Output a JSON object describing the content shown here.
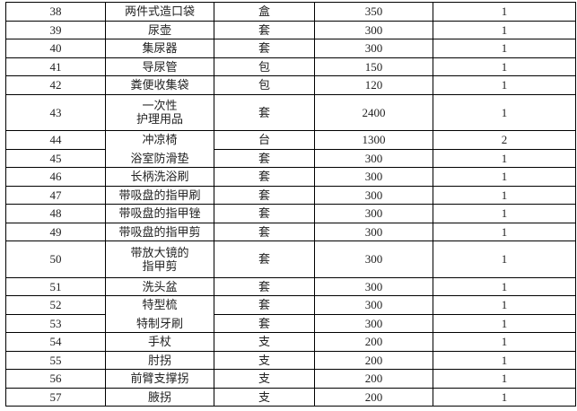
{
  "rows": [
    {
      "no": "38",
      "name": "两件式造口袋",
      "unit": "盒",
      "price": "350",
      "qty": "1"
    },
    {
      "no": "39",
      "name": "尿壶",
      "unit": "套",
      "price": "300",
      "qty": "1"
    },
    {
      "no": "40",
      "name": "集尿器",
      "unit": "套",
      "price": "300",
      "qty": "1"
    },
    {
      "no": "41",
      "name": "导尿管",
      "unit": "包",
      "price": "150",
      "qty": "1"
    },
    {
      "no": "42",
      "name": "粪便收集袋",
      "unit": "包",
      "price": "120",
      "qty": "1"
    },
    {
      "no": "43",
      "name": "一次性\n护理用品",
      "unit": "套",
      "price": "2400",
      "qty": "1"
    },
    {
      "no": "44",
      "name": "冲凉椅",
      "unit": "台",
      "price": "1300",
      "qty": "2"
    },
    {
      "no": "45",
      "name": "浴室防滑垫",
      "unit": "套",
      "price": "300",
      "qty": "1"
    },
    {
      "no": "46",
      "name": "长柄洗浴刷",
      "unit": "套",
      "price": "300",
      "qty": "1"
    },
    {
      "no": "47",
      "name": "带吸盘的指甲刷",
      "unit": "套",
      "price": "300",
      "qty": "1"
    },
    {
      "no": "48",
      "name": "带吸盘的指甲锉",
      "unit": "套",
      "price": "300",
      "qty": "1"
    },
    {
      "no": "49",
      "name": "带吸盘的指甲剪",
      "unit": "套",
      "price": "300",
      "qty": "1"
    },
    {
      "no": "50",
      "name": "带放大镜的\n指甲剪",
      "unit": "套",
      "price": "300",
      "qty": "1"
    },
    {
      "no": "51",
      "name": "洗头盆",
      "unit": "套",
      "price": "300",
      "qty": "1"
    },
    {
      "no": "52",
      "name": "特型梳",
      "unit": "套",
      "price": "300",
      "qty": "1"
    },
    {
      "no": "53",
      "name": "特制牙刷",
      "unit": "套",
      "price": "300",
      "qty": "1"
    },
    {
      "no": "54",
      "name": "手杖",
      "unit": "支",
      "price": "200",
      "qty": "1"
    },
    {
      "no": "55",
      "name": "肘拐",
      "unit": "支",
      "price": "200",
      "qty": "1"
    },
    {
      "no": "56",
      "name": "前臂支撑拐",
      "unit": "支",
      "price": "200",
      "qty": "1"
    },
    {
      "no": "57",
      "name": "腋拐",
      "unit": "支",
      "price": "200",
      "qty": "1"
    }
  ]
}
